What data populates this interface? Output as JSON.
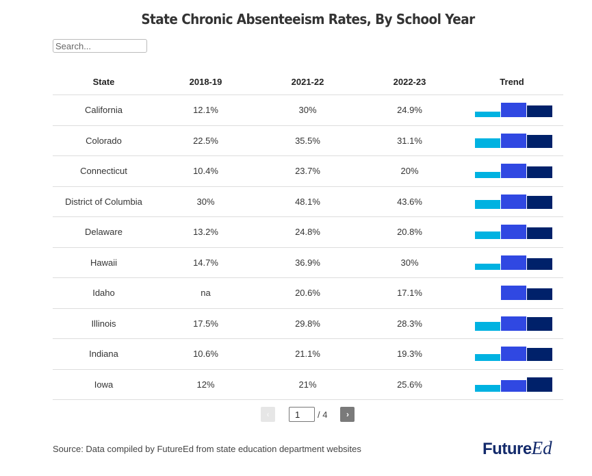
{
  "title": "State Chronic Absenteeism Rates, By School Year",
  "search": {
    "placeholder": "Search...",
    "value": ""
  },
  "table": {
    "headers": [
      "State",
      "2018-19",
      "2021-22",
      "2022-23",
      "Trend"
    ],
    "rows": [
      {
        "state": "California",
        "y2018_19": "12.1%",
        "y2021_22": "30%",
        "y2022_23": "24.9%"
      },
      {
        "state": "Colorado",
        "y2018_19": "22.5%",
        "y2021_22": "35.5%",
        "y2022_23": "31.1%"
      },
      {
        "state": "Connecticut",
        "y2018_19": "10.4%",
        "y2021_22": "23.7%",
        "y2022_23": "20%"
      },
      {
        "state": "District of Columbia",
        "y2018_19": "30%",
        "y2021_22": "48.1%",
        "y2022_23": "43.6%"
      },
      {
        "state": "Delaware",
        "y2018_19": "13.2%",
        "y2021_22": "24.8%",
        "y2022_23": "20.8%"
      },
      {
        "state": "Hawaii",
        "y2018_19": "14.7%",
        "y2021_22": "36.9%",
        "y2022_23": "30%"
      },
      {
        "state": "Idaho",
        "y2018_19": "na",
        "y2021_22": "20.6%",
        "y2022_23": "17.1%"
      },
      {
        "state": "Illinois",
        "y2018_19": "17.5%",
        "y2021_22": "29.8%",
        "y2022_23": "28.3%"
      },
      {
        "state": "Indiana",
        "y2018_19": "10.6%",
        "y2021_22": "21.1%",
        "y2022_23": "19.3%"
      },
      {
        "state": "Iowa",
        "y2018_19": "12%",
        "y2021_22": "21%",
        "y2022_23": "25.6%"
      }
    ]
  },
  "trend_colors": [
    "#00b2e1",
    "#3048e2",
    "#00216a"
  ],
  "pagination": {
    "prev_label": "‹",
    "next_label": "›",
    "current_page": "1",
    "total_label": "/ 4"
  },
  "footer": {
    "source": "Source: Data compiled by FutureEd from state education department websites",
    "logo_future": "Future",
    "logo_ed": "Ed"
  }
}
